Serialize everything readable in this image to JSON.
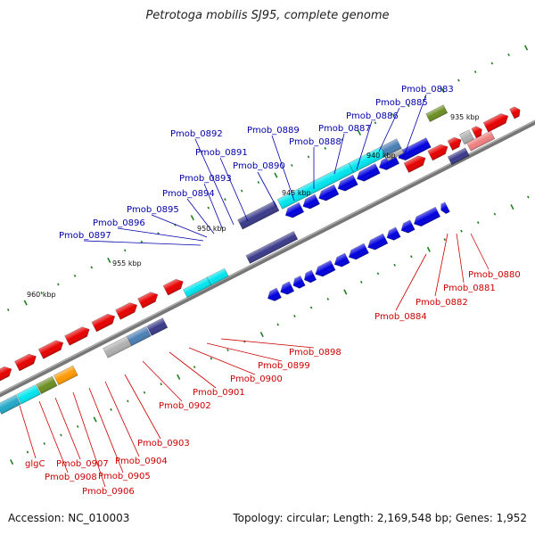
{
  "title": "Petrotoga mobilis SJ95, complete genome",
  "accession": "Accession: NC_010003",
  "summary": "Topology: circular; Length: 2,169,548 bp; Genes: 1,952",
  "scale_labels": [
    "935 kbp",
    "940 kbp",
    "945 kbp",
    "950 kbp",
    "955 kbp",
    "960 kbp"
  ],
  "upper_genes": [
    "Pmob_0883",
    "Pmob_0885",
    "Pmob_0886",
    "Pmob_0887",
    "Pmob_0888",
    "Pmob_0889",
    "Pmob_0890",
    "Pmob_0891",
    "Pmob_0892",
    "Pmob_0893",
    "Pmob_0894",
    "Pmob_0895",
    "Pmob_0896",
    "Pmob_0897"
  ],
  "right_genes": [
    "Pmob_0880",
    "Pmob_0881",
    "Pmob_0882",
    "Pmob_0884"
  ],
  "lower_genes": [
    "Pmob_0898",
    "Pmob_0899",
    "Pmob_0900",
    "Pmob_0901",
    "Pmob_0902",
    "Pmob_0903",
    "Pmob_0904",
    "Pmob_0905",
    "Pmob_0906",
    "Pmob_0907",
    "Pmob_0908",
    "glgC"
  ],
  "colors": {
    "forward": "#e60000",
    "reverse": "#0000dd",
    "cyan": "#00e5ee",
    "teal": "#22a8c8",
    "navy": "#3a3a8a",
    "olive": "#6b8e23",
    "orange": "#ff9900",
    "steel": "#4a7fb5",
    "grey": "#b0b0b0",
    "pink": "#f08080",
    "backbone": "#777777",
    "tick": "#1f7f1f"
  }
}
